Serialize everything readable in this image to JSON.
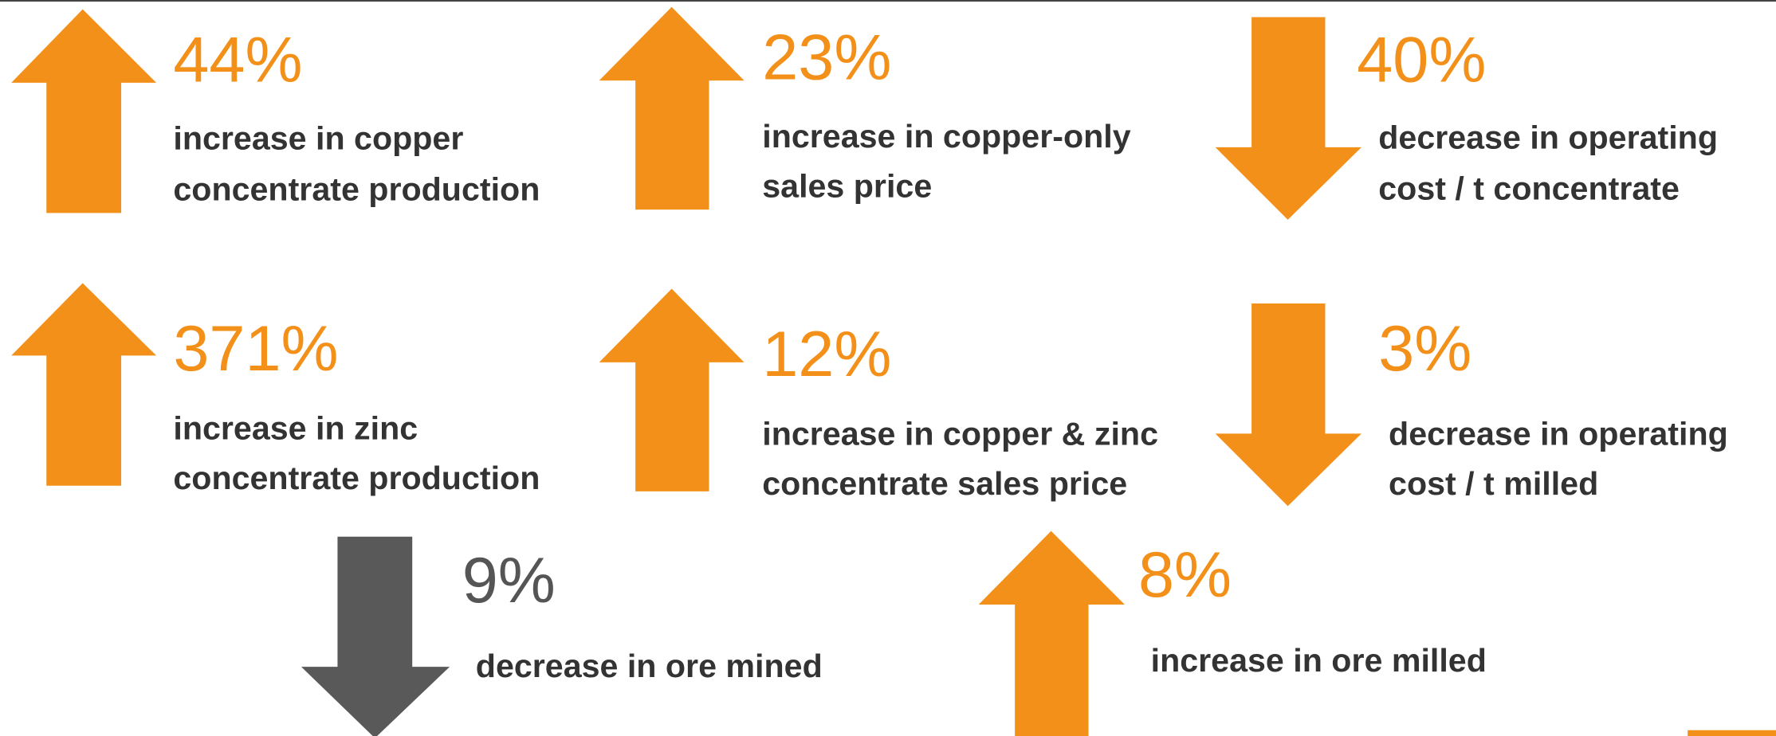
{
  "items": [
    {
      "value": "44%",
      "lines": [
        "increase in copper",
        "concentrate production"
      ]
    },
    {
      "value": "23%",
      "lines": [
        "increase in copper-only",
        "sales price"
      ]
    },
    {
      "value": "40%",
      "lines": [
        "decrease in operating",
        "cost / t concentrate"
      ]
    },
    {
      "value": "371%",
      "lines": [
        "increase in zinc",
        "concentrate production"
      ]
    },
    {
      "value": "12%",
      "lines": [
        "increase in copper & zinc",
        "concentrate sales price"
      ]
    },
    {
      "value": "3%",
      "lines": [
        "decrease in operating",
        "cost / t milled"
      ]
    },
    {
      "value": "9%",
      "lines": [
        "decrease in ore mined"
      ]
    },
    {
      "value": "8%",
      "lines": [
        "increase in ore milled"
      ]
    }
  ]
}
